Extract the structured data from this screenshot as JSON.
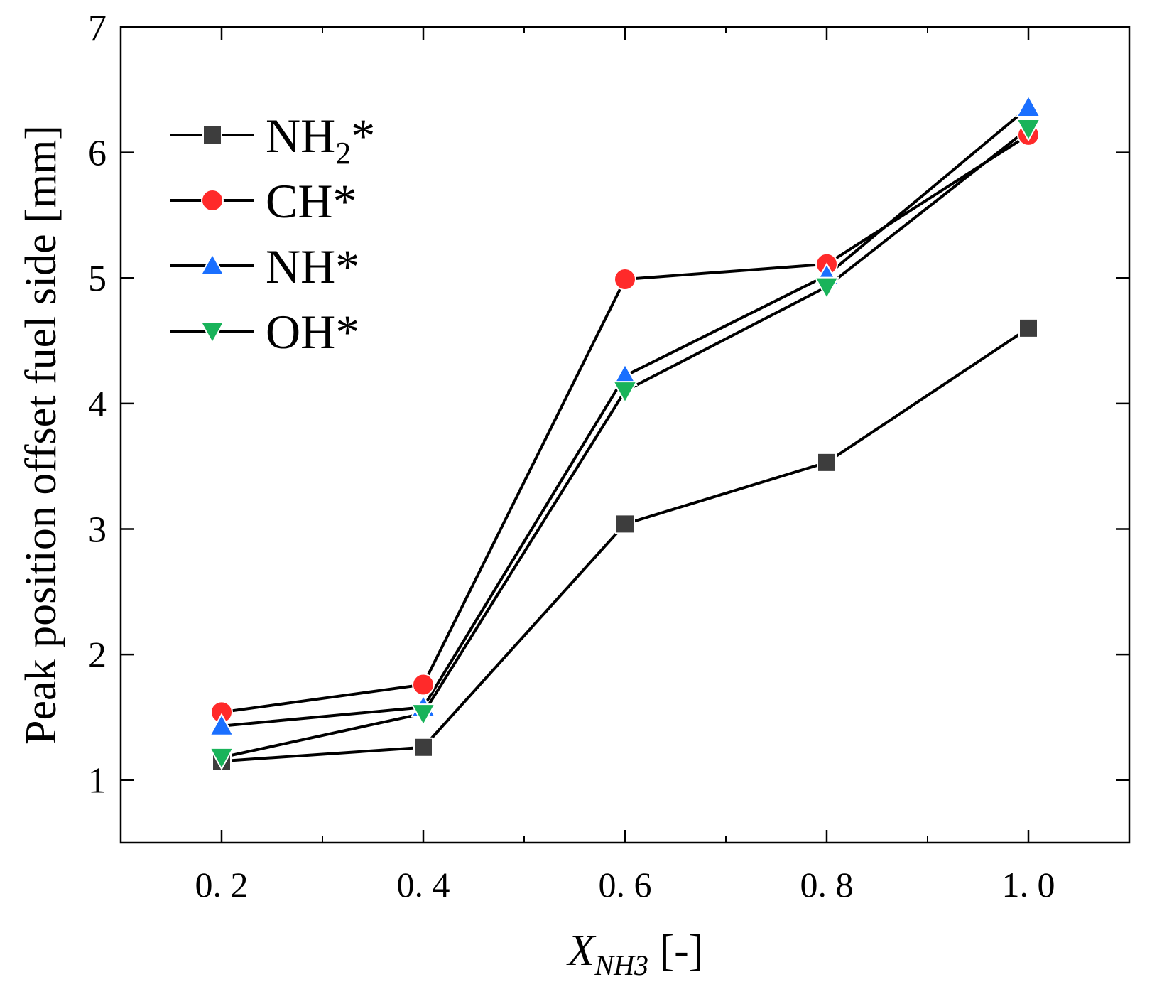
{
  "chart_data": {
    "type": "line",
    "title": "",
    "xlabel": "X",
    "xlabel_subscript": "NH3",
    "xlabel_suffix": " [-]",
    "ylabel": "Peak position offset fuel side [mm]",
    "xlim": [
      0.1,
      1.1
    ],
    "ylim": [
      0.5,
      7
    ],
    "x_ticks": [
      0.2,
      0.4,
      0.6,
      0.8,
      1.0
    ],
    "x_tick_labels": [
      "0. 2",
      "0. 4",
      "0. 6",
      "0. 8",
      "1. 0"
    ],
    "y_ticks": [
      1,
      2,
      3,
      4,
      5,
      6,
      7
    ],
    "y_tick_labels": [
      "1",
      "2",
      "3",
      "4",
      "5",
      "6",
      "7"
    ],
    "grid": false,
    "legend_position": "top-left",
    "x": [
      0.2,
      0.4,
      0.6,
      0.8,
      1.0
    ],
    "series": [
      {
        "name": "NH2*",
        "label_main": "NH",
        "label_sub": "2",
        "label_end": "*",
        "marker": "square",
        "color": "#3d3d3d",
        "values": [
          1.15,
          1.26,
          3.04,
          3.53,
          4.6
        ]
      },
      {
        "name": "CH*",
        "label_main": "CH*",
        "label_sub": "",
        "label_end": "",
        "marker": "circle",
        "color": "#ff2a2a",
        "values": [
          1.54,
          1.76,
          4.99,
          5.11,
          6.14
        ]
      },
      {
        "name": "NH*",
        "label_main": "NH*",
        "label_sub": "",
        "label_end": "",
        "marker": "triangle-up",
        "color": "#1a6fff",
        "values": [
          1.43,
          1.58,
          4.22,
          5.02,
          6.36
        ]
      },
      {
        "name": "OH*",
        "label_main": "OH*",
        "label_sub": "",
        "label_end": "",
        "marker": "triangle-down",
        "color": "#19b35a",
        "values": [
          1.18,
          1.53,
          4.1,
          4.93,
          6.19
        ]
      }
    ]
  }
}
